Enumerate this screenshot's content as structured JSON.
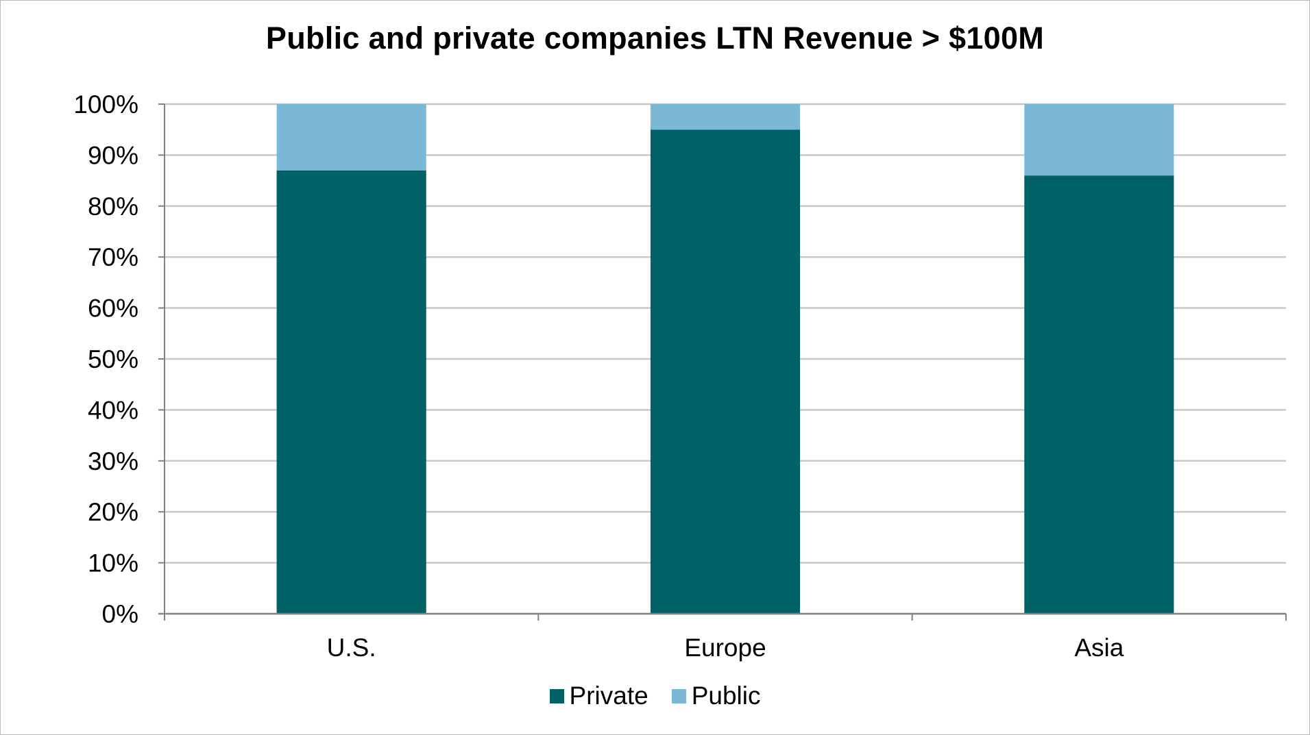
{
  "chart_data": {
    "type": "bar",
    "stacked": true,
    "title": "Public and private companies LTN Revenue > $100M",
    "categories": [
      "U.S.",
      "Europe",
      "Asia"
    ],
    "series": [
      {
        "name": "Private",
        "color": "#006266",
        "values": [
          87,
          95,
          86
        ]
      },
      {
        "name": "Public",
        "color": "#7ab8d6",
        "values": [
          13,
          5,
          14
        ]
      }
    ],
    "ylim": [
      0,
      100
    ],
    "yticks": [
      "0%",
      "10%",
      "20%",
      "30%",
      "40%",
      "50%",
      "60%",
      "70%",
      "80%",
      "90%",
      "100%"
    ],
    "xlabel": "",
    "ylabel": "",
    "grid": true,
    "legend_position": "bottom"
  }
}
